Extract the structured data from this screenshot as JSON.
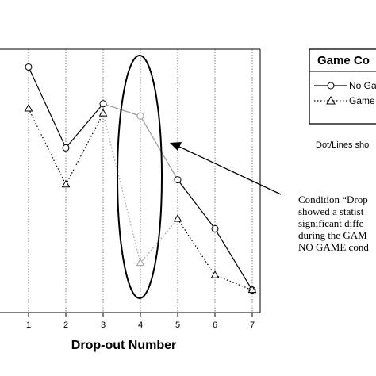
{
  "chart_data": {
    "type": "line",
    "xlabel": "Drop-out Number",
    "ylabel": "",
    "x": [
      1,
      2,
      3,
      4,
      5,
      6,
      7
    ],
    "xlim": [
      0,
      7.5
    ],
    "ylim": [
      0,
      100
    ],
    "grid": "vertical dotted lines at each x tick",
    "legend_position": "top-right (partially cropped)",
    "legend_title": "Game Co",
    "series": [
      {
        "name": "No Ga",
        "marker": "circle",
        "line_style": "solid",
        "color": "#000000",
        "values": [
          95,
          62,
          80,
          75,
          49,
          29,
          4
        ]
      },
      {
        "name": "Game",
        "marker": "triangle",
        "line_style": "dotted",
        "color": "#000000",
        "values": [
          78,
          47,
          76,
          15,
          33,
          10,
          4
        ]
      }
    ],
    "highlight": {
      "x": 4,
      "shape": "ellipse"
    },
    "note": "Dot/Lines sho",
    "annotation_lines": [
      "Condition “Drop",
      "showed a statist",
      "significant diffe",
      "during the GAM",
      "NO GAME cond"
    ],
    "segment_highlight_color": "#999999"
  }
}
